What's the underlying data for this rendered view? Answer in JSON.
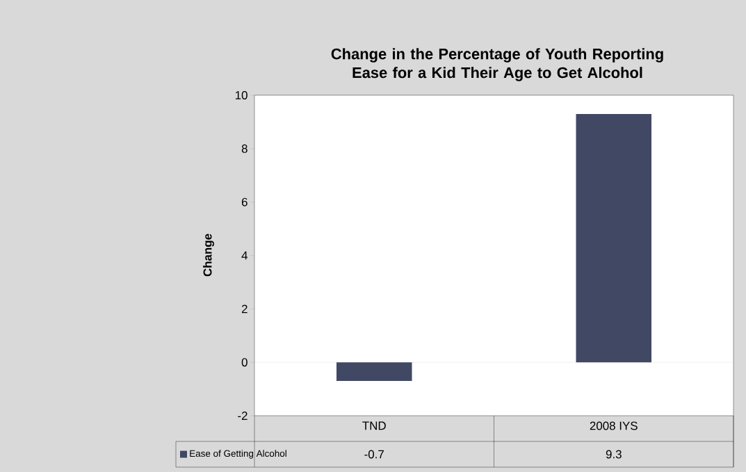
{
  "chart_data": {
    "type": "bar",
    "title": "Change in the Percentage of Youth Reporting Ease for a Kid Their Age to Get Alcohol",
    "ylabel": "Change",
    "categories": [
      "TND",
      "2008 IYS"
    ],
    "series": [
      {
        "name": "Ease of Getting Alcohol",
        "color": "#404864",
        "values": [
          -0.7,
          9.3
        ]
      }
    ],
    "ylim": [
      -2,
      10
    ],
    "yticks": [
      -2,
      0,
      2,
      4,
      6,
      8,
      10
    ],
    "data_labels": true,
    "legend": "bottom"
  }
}
